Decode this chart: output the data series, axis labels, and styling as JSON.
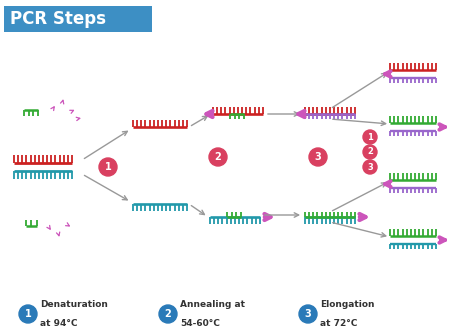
{
  "title": "PCR Steps",
  "title_bg": "#3d8fc4",
  "title_color": "white",
  "bg_color": "white",
  "legend": [
    {
      "num": "1",
      "label1": "Denaturation",
      "label2": "at 94°C"
    },
    {
      "num": "2",
      "label1": "Annealing at",
      "label2": "54-60°C"
    },
    {
      "num": "3",
      "label1": "Elongation",
      "label2": "at 72°C"
    }
  ],
  "legend_circle_color": "#2a7ab8",
  "step_circle_color": "#d94060",
  "red_color": "#cc2222",
  "blue_color": "#2255cc",
  "teal_color": "#2299aa",
  "green_color": "#33aa33",
  "pink_color": "#cc55bb",
  "purple_color": "#9966cc",
  "gray_arrow": "#999999",
  "pink_arrow": "#cc66bb"
}
